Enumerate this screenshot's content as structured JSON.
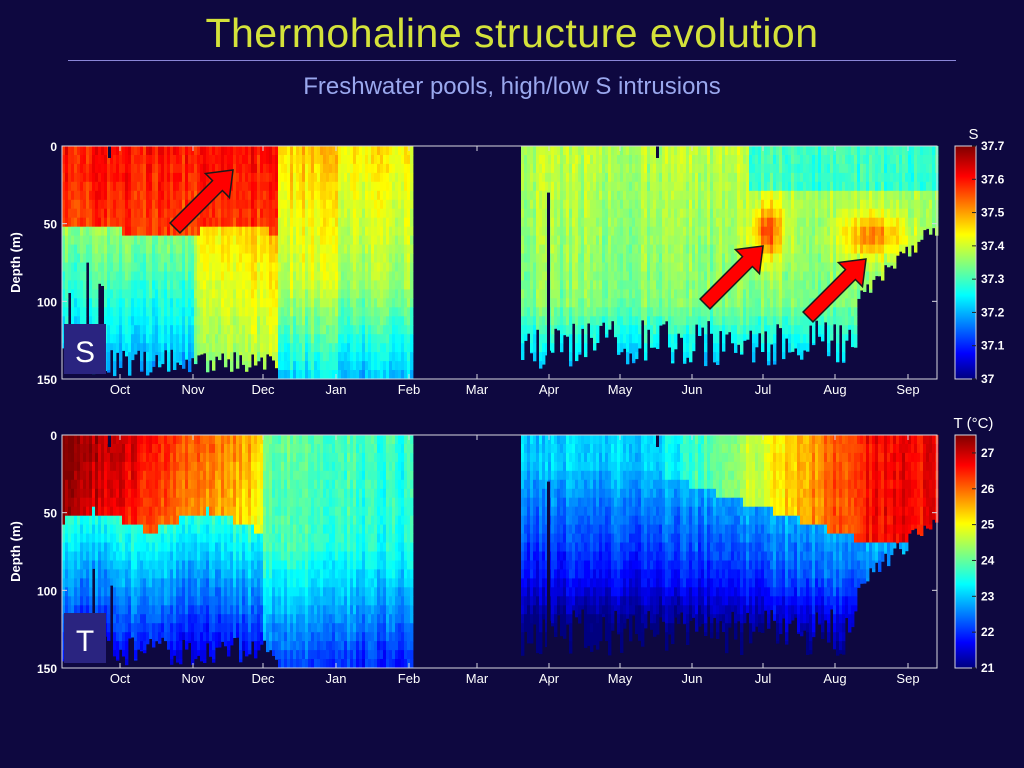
{
  "slide": {
    "title": "Thermohaline structure evolution",
    "subtitle": "Freshwater pools, high/low S intrusions"
  },
  "chart_data": [
    {
      "type": "heatmap",
      "panel_label": "S",
      "variable": "S",
      "ylabel": "Depth (m)",
      "ylim": [
        150,
        0
      ],
      "yticks": [
        0,
        50,
        100,
        150
      ],
      "xtick_labels": [
        "Oct",
        "Nov",
        "Dec",
        "Jan",
        "Feb",
        "Mar",
        "Apr",
        "May",
        "Jun",
        "Jul",
        "Aug",
        "Sep"
      ],
      "colorbar": {
        "label": "S",
        "range": [
          37.0,
          37.7
        ],
        "ticks": [
          "37.7",
          "37.6",
          "37.5",
          "37.4",
          "37.3",
          "37.2",
          "37.1",
          "37"
        ]
      },
      "data_gap": [
        "Feb",
        "Apr"
      ],
      "colormap": "jet",
      "annotations": [
        {
          "type": "arrow",
          "color": "#ff0000",
          "points_to": "high-S surface intrusion, late Nov"
        },
        {
          "type": "arrow",
          "color": "#ff0000",
          "points_to": "high-S subsurface core, early Jul, ~60 m"
        },
        {
          "type": "arrow",
          "color": "#ff0000",
          "points_to": "high-S subsurface core, mid Aug, ~60 m"
        }
      ]
    },
    {
      "type": "heatmap",
      "panel_label": "T",
      "variable": "T (°C)",
      "ylabel": "Depth (m)",
      "ylim": [
        150,
        0
      ],
      "yticks": [
        0,
        50,
        100,
        150
      ],
      "xtick_labels": [
        "Oct",
        "Nov",
        "Dec",
        "Jan",
        "Feb",
        "Mar",
        "Apr",
        "May",
        "Jun",
        "Jul",
        "Aug",
        "Sep"
      ],
      "colorbar": {
        "label": "T (°C)",
        "range": [
          21,
          27.5
        ],
        "ticks": [
          "27",
          "26",
          "25",
          "24",
          "23",
          "22",
          "21"
        ]
      },
      "data_gap": [
        "Feb",
        "Apr"
      ],
      "colormap": "jet"
    }
  ],
  "colors": {
    "background": "#0e0840",
    "title": "#d4e23a",
    "subtitle": "#9aa8ee",
    "arrow": "#ff0000",
    "label_box": "#2a2480"
  }
}
